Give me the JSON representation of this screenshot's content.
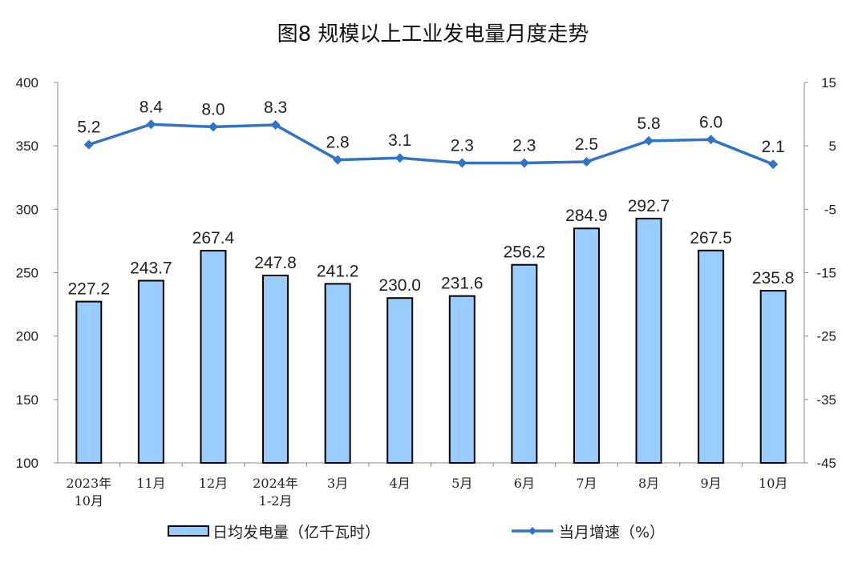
{
  "chart_data": {
    "type": "bar+line",
    "title": "图8  规模以上工业发电量月度走势",
    "categories": [
      [
        "2023年",
        "10月"
      ],
      [
        "11月"
      ],
      [
        "12月"
      ],
      [
        "2024年",
        "1-2月"
      ],
      [
        "3月"
      ],
      [
        "4月"
      ],
      [
        "5月"
      ],
      [
        "6月"
      ],
      [
        "7月"
      ],
      [
        "8月"
      ],
      [
        "9月"
      ],
      [
        "10月"
      ]
    ],
    "series": [
      {
        "name": "日均发电量（亿千瓦时）",
        "type": "bar",
        "axis": "left",
        "color": "#99CCFF",
        "values": [
          227.2,
          243.7,
          267.4,
          247.8,
          241.2,
          230.0,
          231.6,
          256.2,
          284.9,
          292.7,
          267.5,
          235.8
        ]
      },
      {
        "name": "当月增速（%）",
        "type": "line",
        "axis": "right",
        "color": "#3173C4",
        "values": [
          5.2,
          8.4,
          8.0,
          8.3,
          2.8,
          3.1,
          2.3,
          2.3,
          2.5,
          5.8,
          6.0,
          2.1
        ]
      }
    ],
    "left_axis": {
      "ylim": [
        100,
        400
      ],
      "ticks": [
        100,
        150,
        200,
        250,
        300,
        350,
        400
      ]
    },
    "right_axis": {
      "ylim": [
        -45,
        15
      ],
      "ticks": [
        -45,
        -35,
        -25,
        -15,
        -5,
        5,
        15
      ]
    },
    "grid": false,
    "legend": "bottom"
  }
}
